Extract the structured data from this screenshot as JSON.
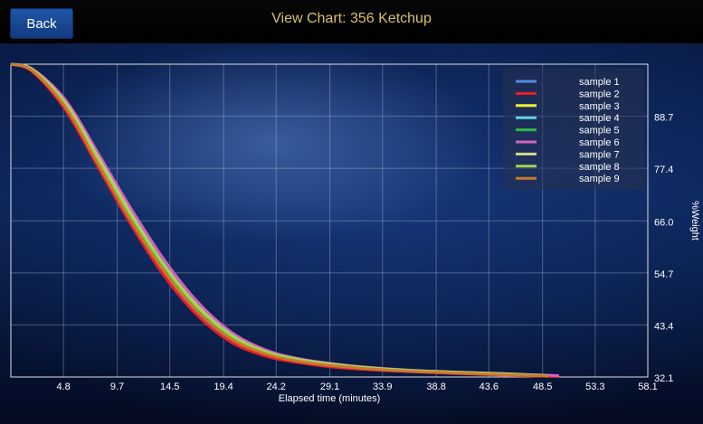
{
  "header": {
    "back_label": "Back",
    "title": "View Chart: 356 Ketchup"
  },
  "chart_data": {
    "type": "line",
    "xlabel": "Elapsed time (minutes)",
    "ylabel": "%Weight",
    "xlim": [
      0,
      58.1
    ],
    "ylim": [
      32.1,
      100
    ],
    "x_ticks": [
      "4.8",
      "9.7",
      "14.5",
      "19.4",
      "24.2",
      "29.1",
      "33.9",
      "38.8",
      "43.6",
      "48.5",
      "53.3",
      "58.1"
    ],
    "y_ticks": [
      "32.1",
      "43.4",
      "54.7",
      "66.0",
      "77.4",
      "88.7"
    ],
    "grid": true,
    "legend_position": "top-right",
    "series": [
      {
        "name": "sample 1",
        "color": "#4f8be0",
        "x": [
          0,
          2,
          5,
          8,
          11,
          14,
          17,
          20,
          23,
          26,
          30,
          35,
          40,
          45,
          49
        ],
        "y": [
          100,
          98.5,
          90.5,
          78,
          65.5,
          54.5,
          46,
          40.2,
          37.1,
          35.5,
          34.3,
          33.5,
          33,
          32.6,
          32.3
        ]
      },
      {
        "name": "sample 2",
        "color": "#e8202a",
        "x": [
          0,
          2,
          5,
          8,
          11,
          14,
          17,
          20,
          23,
          26,
          30,
          35,
          40,
          45,
          50
        ],
        "y": [
          100,
          98.3,
          90,
          77.5,
          65,
          54,
          45.5,
          39.8,
          36.8,
          35.3,
          34.1,
          33.4,
          32.9,
          32.5,
          32.2
        ]
      },
      {
        "name": "sample 3",
        "color": "#f2ee36",
        "x": [
          0,
          2,
          5,
          8,
          11,
          14,
          17,
          20,
          23,
          26,
          30,
          35,
          40,
          45,
          49
        ],
        "y": [
          100,
          98.7,
          91.2,
          79.2,
          67,
          56,
          47.3,
          41.2,
          37.7,
          35.9,
          34.6,
          33.7,
          33.1,
          32.7,
          32.4
        ]
      },
      {
        "name": "sample 4",
        "color": "#5fd3e6",
        "x": [
          0,
          2,
          5,
          8,
          11,
          14,
          17,
          20,
          23,
          26,
          30,
          35,
          40,
          45,
          49
        ],
        "y": [
          100,
          98.6,
          91,
          79,
          66.8,
          55.8,
          47.1,
          41,
          37.6,
          35.8,
          34.5,
          33.6,
          33.1,
          32.7,
          32.4
        ]
      },
      {
        "name": "sample 5",
        "color": "#35b846",
        "x": [
          0,
          2,
          5,
          8,
          11,
          14,
          17,
          20,
          23,
          26,
          30,
          35,
          40,
          45,
          49
        ],
        "y": [
          100,
          98.6,
          90.8,
          78.6,
          66.3,
          55.4,
          46.8,
          40.8,
          37.5,
          35.7,
          34.5,
          33.6,
          33.1,
          32.7,
          32.4
        ]
      },
      {
        "name": "sample 6",
        "color": "#d063c5",
        "x": [
          0,
          2,
          5,
          8,
          11,
          14,
          17,
          20,
          23,
          26,
          30,
          35,
          40,
          45,
          50
        ],
        "y": [
          100,
          98.9,
          92.2,
          80.5,
          68.5,
          57.5,
          48.5,
          42,
          38.2,
          36.2,
          34.8,
          33.8,
          33.2,
          32.8,
          32.4
        ]
      },
      {
        "name": "sample 7",
        "color": "#d9d98a",
        "x": [
          0,
          2,
          5,
          8,
          11,
          14,
          17,
          20,
          23,
          26,
          30,
          35,
          40,
          45,
          49
        ],
        "y": [
          100,
          98.8,
          91.5,
          79.6,
          67.4,
          56.4,
          47.6,
          41.4,
          37.8,
          36,
          34.7,
          33.7,
          33.2,
          32.8,
          32.4
        ]
      },
      {
        "name": "sample 8",
        "color": "#9ed64c",
        "x": [
          0,
          2,
          5,
          8,
          11,
          14,
          17,
          20,
          23,
          26,
          30,
          35,
          40,
          45,
          49
        ],
        "y": [
          100,
          98.7,
          91.3,
          79.3,
          67.1,
          56.2,
          47.4,
          41.3,
          37.8,
          36,
          34.6,
          33.7,
          33.1,
          32.7,
          32.4
        ]
      },
      {
        "name": "sample 9",
        "color": "#c97a2f",
        "x": [
          0,
          2,
          5,
          8,
          11,
          14,
          17,
          20,
          23,
          26,
          30,
          35,
          40,
          45,
          49
        ],
        "y": [
          100,
          98.5,
          90.6,
          78.2,
          65.8,
          55,
          46.4,
          40.5,
          37.3,
          35.6,
          34.4,
          33.5,
          33,
          32.6,
          32.3
        ]
      }
    ]
  }
}
